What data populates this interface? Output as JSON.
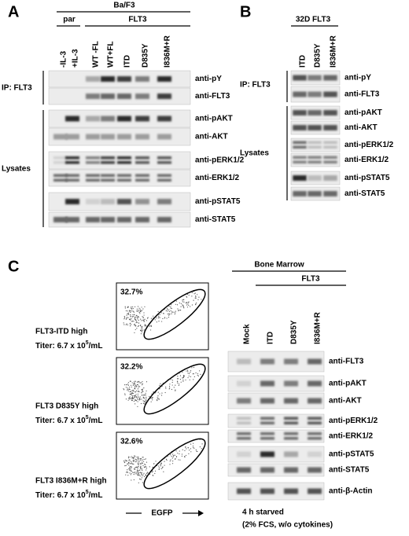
{
  "panel_a": {
    "label": "A",
    "cell_line": "Ba/F3",
    "groups": [
      "par",
      "FLT3"
    ],
    "lanes": [
      "-IL-3",
      "+IL-3",
      "WT -FL",
      "WT+FL",
      "ITD",
      "D835Y",
      "I836M+R"
    ],
    "ip_label": "IP: FLT3",
    "ip_blots": [
      "anti-pY",
      "anti-FLT3"
    ],
    "lysate_label": "Lysates",
    "lysate_blots": [
      "anti-pAKT",
      "anti-AKT",
      "anti-pERK1/2",
      "anti-ERK1/2",
      "anti-pSTAT5",
      "anti-STAT5"
    ]
  },
  "panel_b": {
    "label": "B",
    "group": "32D FLT3",
    "lanes": [
      "ITD",
      "D835Y",
      "I836M+R"
    ],
    "ip_label": "IP: FLT3",
    "ip_blots": [
      "anti-pY",
      "anti-FLT3"
    ],
    "lysate_label": "Lysates",
    "lysate_blots": [
      "anti-pAKT",
      "anti-AKT",
      "anti-pERK1/2",
      "anti-ERK1/2",
      "anti-pSTAT5",
      "anti-STAT5"
    ]
  },
  "panel_c": {
    "label": "C",
    "plots": [
      {
        "percent": "32.7%",
        "name": "FLT3-ITD high",
        "titer": "Titer: 6.7 x 10",
        "titer_exponent": "5",
        "titer_unit": "/mL"
      },
      {
        "percent": "32.2%",
        "name": "FLT3 D835Y high",
        "titer": "Titer: 6.7 x 10",
        "titer_exponent": "5",
        "titer_unit": "/mL"
      },
      {
        "percent": "32.6%",
        "name": "FLT3 I836M+R high",
        "titer": "Titer: 6.7 x 10",
        "titer_exponent": "5",
        "titer_unit": "/mL"
      }
    ],
    "x_axis_label": "EGFP",
    "tissue": "Bone Marrow",
    "group": "FLT3",
    "lanes": [
      "Mock",
      "ITD",
      "D835Y",
      "I836M+R"
    ],
    "blots": [
      "anti-FLT3",
      "anti-pAKT",
      "anti-AKT",
      "anti-pERK1/2",
      "anti-ERK1/2",
      "anti-pSTAT5",
      "anti-STAT5",
      "anti-β-Actin"
    ],
    "note": [
      "4 h starved",
      "(2% FCS, w/o cytokines)"
    ]
  }
}
